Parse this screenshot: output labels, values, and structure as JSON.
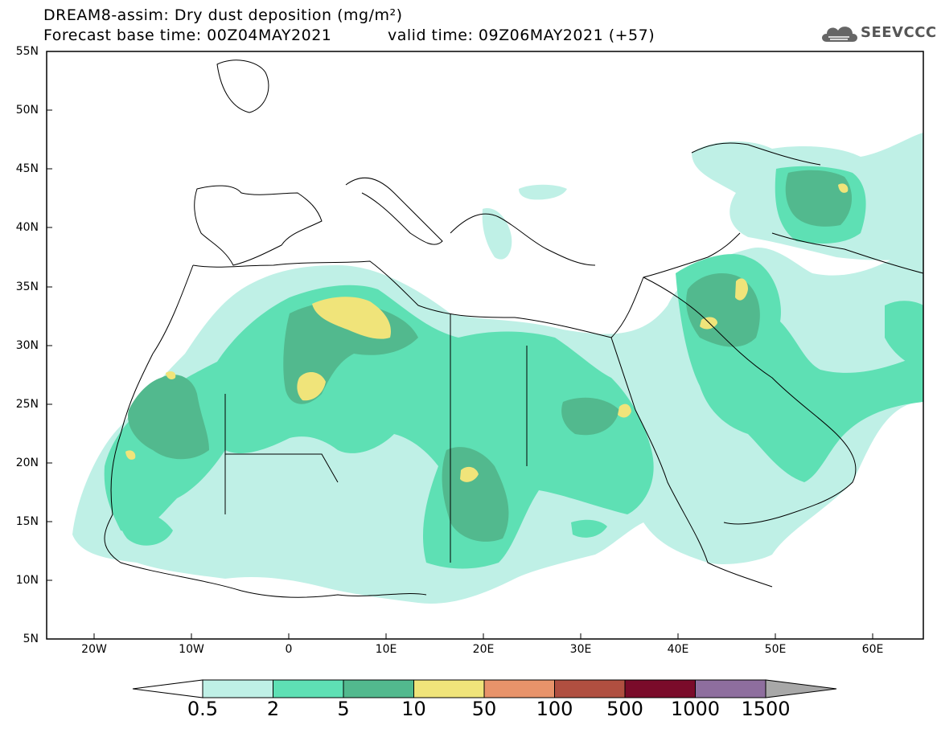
{
  "header": {
    "title": "DREAM8-assim: Dry dust deposition (mg/m²)",
    "base_time": "Forecast base time: 00Z04MAY2021",
    "valid_time": "valid time: 09Z06MAY2021 (+57)"
  },
  "logo": {
    "text": "SEEVCCC",
    "icon": "cloud-icon"
  },
  "map": {
    "lat_labels": [
      "55N",
      "50N",
      "45N",
      "40N",
      "35N",
      "30N",
      "25N",
      "20N",
      "15N",
      "10N",
      "5N"
    ],
    "lon_labels": [
      "20W",
      "10W",
      "0",
      "10E",
      "20E",
      "30E",
      "40E",
      "50E",
      "60E"
    ],
    "lat_range": [
      5,
      55
    ],
    "lon_range": [
      -25,
      65
    ],
    "projection": "lat-lon",
    "field": "dry dust deposition"
  },
  "legend": {
    "levels": [
      "0.5",
      "2",
      "5",
      "10",
      "50",
      "100",
      "500",
      "1000",
      "1500"
    ],
    "colors": [
      "#bff0e6",
      "#5ee0b4",
      "#52b98e",
      "#f0e47a",
      "#e8936a",
      "#b04f40",
      "#7a0b2a",
      "#8e6e9e",
      "#a8a8a8"
    ],
    "under_color": "#ffffff",
    "over_color": "#a8a8a8"
  }
}
